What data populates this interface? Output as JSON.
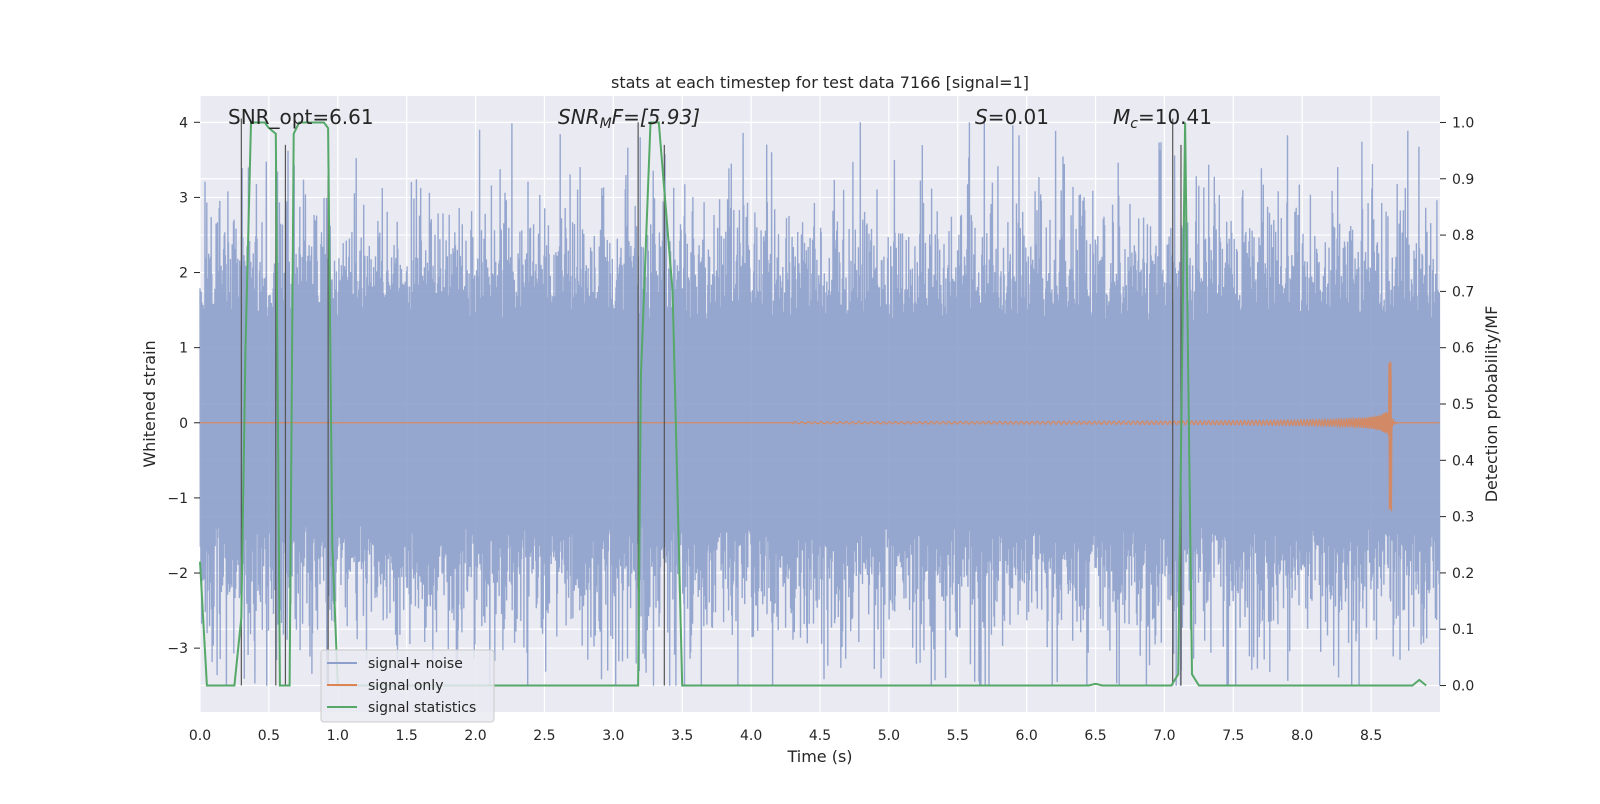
{
  "chart_data": {
    "type": "line",
    "title": "stats at each timestep for test data 7166 [signal=1]",
    "xlabel": "Time (s)",
    "ylabel": "Whitened strain",
    "y2label": "Detection probability/MF",
    "xlim": [
      0,
      9.0
    ],
    "ylim": [
      -3.85,
      4.35
    ],
    "y2lim": [
      -0.047,
      1.047
    ],
    "xticks": [
      0.0,
      0.5,
      1.0,
      1.5,
      2.0,
      2.5,
      3.0,
      3.5,
      4.0,
      4.5,
      5.0,
      5.5,
      6.0,
      6.5,
      7.0,
      7.5,
      8.0,
      8.5
    ],
    "xtick_labels": [
      "0.0",
      "0.5",
      "1.0",
      "1.5",
      "2.0",
      "2.5",
      "3.0",
      "3.5",
      "4.0",
      "4.5",
      "5.0",
      "5.5",
      "6.0",
      "6.5",
      "7.0",
      "7.5",
      "8.0",
      "8.5"
    ],
    "yticks": [
      -3,
      -2,
      -1,
      0,
      1,
      2,
      3,
      4
    ],
    "ytick_labels": [
      "−3",
      "−2",
      "−1",
      "0",
      "1",
      "2",
      "3",
      "4"
    ],
    "y2ticks": [
      0.0,
      0.1,
      0.2,
      0.3,
      0.4,
      0.5,
      0.6,
      0.7,
      0.8,
      0.9,
      1.0
    ],
    "y2tick_labels": [
      "0.0",
      "0.1",
      "0.2",
      "0.3",
      "0.4",
      "0.5",
      "0.6",
      "0.7",
      "0.8",
      "0.9",
      "1.0"
    ],
    "annotations": {
      "snr_opt": "SNR_opt=6.61",
      "snr_mf_base": "SNR",
      "snr_mf_sub": "M",
      "snr_mf_rest": "F=[5.93]",
      "s_sym": "S",
      "s_val": "=0.01",
      "mc_sym": "M",
      "mc_sub": "c",
      "mc_val": "=10.41"
    },
    "legend": {
      "location": "lower-left",
      "entries": [
        "signal+ noise",
        "signal only",
        "signal statistics"
      ]
    },
    "colors": {
      "noise": "#8da0cb",
      "signal": "#dd8452",
      "stat": "#55a868",
      "vline": "#555555",
      "bg": "#eaeaf2",
      "grid": "#ffffff"
    },
    "series": [
      {
        "name": "signal+ noise",
        "description_values": "noise amplitude ~ N(0,1), peaks to about +4 and -3.5",
        "envelope_abs_max": 4.0
      },
      {
        "name": "signal only",
        "chirp_start_s": 4.3,
        "chirp_merger_s": 8.65,
        "peak_positive": 0.85,
        "peak_negative": -1.2
      },
      {
        "name": "signal statistics",
        "axis": "right",
        "x": [
          0.0,
          0.05,
          0.25,
          0.3,
          0.33,
          0.37,
          0.47,
          0.5,
          0.55,
          0.58,
          0.65,
          0.68,
          0.72,
          0.9,
          0.93,
          0.96,
          1.0,
          3.18,
          3.2,
          3.27,
          3.33,
          3.43,
          3.5,
          6.45,
          6.5,
          6.55,
          7.05,
          7.1,
          7.15,
          7.2,
          7.25,
          8.8,
          8.85,
          8.9
        ],
        "y": [
          0.22,
          0.0,
          0.0,
          0.12,
          0.6,
          1.0,
          1.0,
          0.99,
          0.98,
          0.0,
          0.0,
          0.98,
          1.0,
          1.0,
          0.99,
          0.25,
          0.0,
          0.0,
          0.55,
          1.0,
          1.0,
          0.7,
          0.0,
          0.0,
          0.003,
          0.0,
          0.0,
          0.02,
          1.0,
          0.02,
          0.0,
          0.0,
          0.01,
          0.0
        ]
      }
    ],
    "vertical_lines_s": [
      0.3,
      0.55,
      0.62,
      0.93,
      3.18,
      3.37,
      7.06,
      7.12
    ],
    "vertical_lines_top_y": [
      4.05,
      3.7,
      3.7,
      3.3,
      4.0,
      3.7,
      4.05,
      3.7
    ]
  }
}
